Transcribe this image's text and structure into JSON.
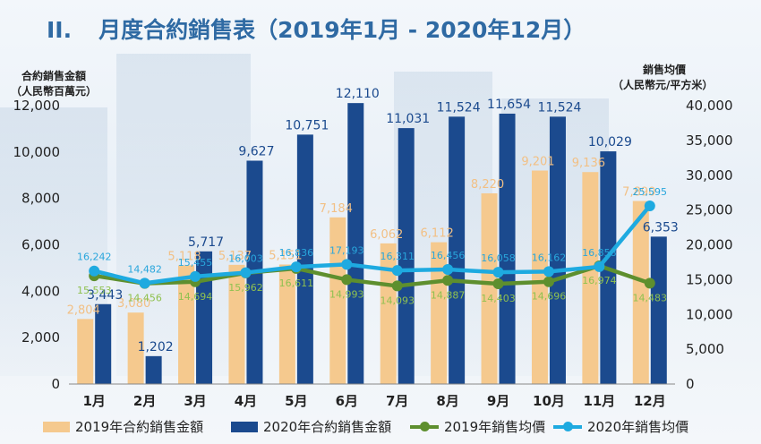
{
  "header": {
    "section": "II.",
    "title": "月度合約銷售表（2019年1月 - 2020年12月）"
  },
  "left_axis_title": [
    "合約銷售金額",
    "（人民幣百萬元）"
  ],
  "right_axis_title": [
    "銷售均價",
    "（人民幣元/平方米）"
  ],
  "colors": {
    "bar2019": "#f5c98e",
    "bar2020": "#1b4a8e",
    "line2019": "#5e8f2e",
    "line2020": "#1eaae0",
    "title": "#2f6aa3"
  },
  "chart_data": {
    "type": "bar",
    "categories": [
      "1月",
      "2月",
      "3月",
      "4月",
      "5月",
      "6月",
      "7月",
      "8月",
      "9月",
      "10月",
      "11月",
      "12月"
    ],
    "left_ylim": [
      0,
      12000
    ],
    "left_ticks": [
      "0",
      "2,000",
      "4,000",
      "6,000",
      "8,000",
      "10,000",
      "12,000"
    ],
    "right_ylim": [
      0,
      40000
    ],
    "right_ticks": [
      "0",
      "5,000",
      "10,000",
      "15,000",
      "20,000",
      "25,000",
      "30,000",
      "35,000",
      "40,000"
    ],
    "series": [
      {
        "name": "2019年合約銷售金額",
        "type": "bar",
        "axis": "left",
        "values": [
          2804,
          3080,
          5118,
          5137,
          5151,
          7184,
          6062,
          6112,
          8220,
          9201,
          9136,
          7890
        ],
        "labels": [
          "2,804",
          "3,080",
          "5,118",
          "5,137",
          "5,151",
          "7,184",
          "6,062",
          "6,112",
          "8,220",
          "9,201",
          "9,136",
          "7,890"
        ]
      },
      {
        "name": "2020年合約銷售金額",
        "type": "bar",
        "axis": "left",
        "values": [
          3443,
          1202,
          5717,
          9627,
          10751,
          12110,
          11031,
          11524,
          11654,
          11524,
          10029,
          6353
        ],
        "labels": [
          "3,443",
          "1,202",
          "5,717",
          "9,627",
          "10,751",
          "12,110",
          "11,031",
          "11,524",
          "11,654",
          "11,524",
          "10,029",
          "6,353"
        ]
      },
      {
        "name": "2019年銷售均價",
        "type": "line",
        "axis": "right",
        "values": [
          15553,
          14456,
          14694,
          15962,
          16611,
          14993,
          14093,
          14887,
          14403,
          14696,
          16974,
          14483
        ],
        "labels": [
          "15,553",
          "14,456",
          "14,694",
          "15,962",
          "16,611",
          "14,993",
          "14,093",
          "14,887",
          "14,403",
          "14,696",
          "16,974",
          "14,483"
        ]
      },
      {
        "name": "2020年銷售均價",
        "type": "line",
        "axis": "right",
        "values": [
          16242,
          14482,
          15455,
          16003,
          16836,
          17193,
          16311,
          16456,
          16058,
          16162,
          16858,
          25595
        ],
        "labels": [
          "16,242",
          "14,482",
          "15,455",
          "16,003",
          "16,836",
          "17,193",
          "16,311",
          "16,456",
          "16,058",
          "16,162",
          "16,858",
          "25,595"
        ]
      }
    ]
  }
}
